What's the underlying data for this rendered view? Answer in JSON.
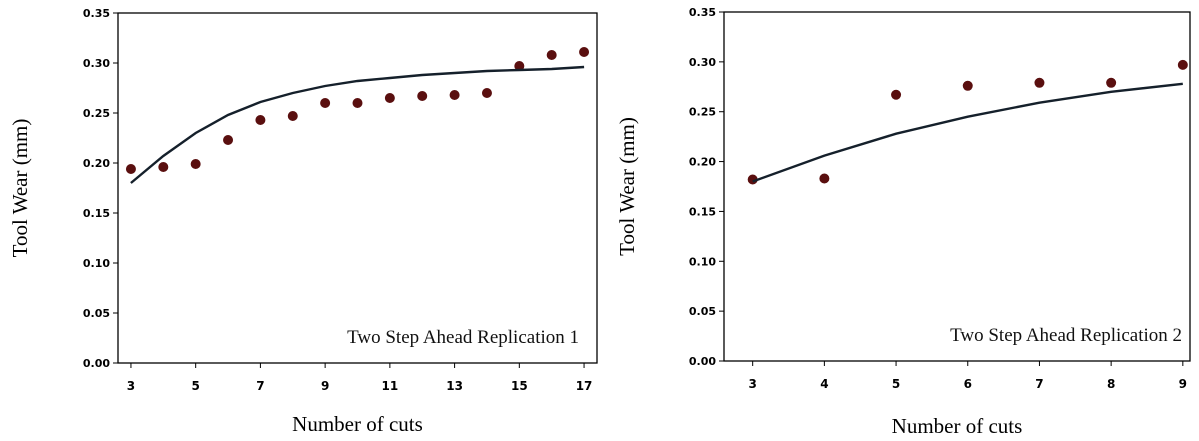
{
  "chart_data": [
    {
      "type": "scatter",
      "xlabel": "Number of cuts",
      "ylabel": "Tool Wear (mm)",
      "annotation": "Two Step Ahead Replication 1",
      "xlim": [
        2.6,
        17.4
      ],
      "ylim": [
        0,
        0.35
      ],
      "xticks": [
        3,
        5,
        7,
        9,
        11,
        13,
        15,
        17
      ],
      "yticks": [
        0.0,
        0.05,
        0.1,
        0.15,
        0.2,
        0.25,
        0.3,
        0.35
      ],
      "ytick_labels": [
        "0.00",
        "0.05",
        "0.10",
        "0.15",
        "0.20",
        "0.25",
        "0.30",
        "0.35"
      ],
      "grid": false,
      "series": [
        {
          "kind": "points",
          "color": "#5a0f0f",
          "x": [
            3,
            4,
            5,
            6,
            7,
            8,
            9,
            10,
            11,
            12,
            13,
            14,
            15,
            16,
            17
          ],
          "y": [
            0.194,
            0.196,
            0.199,
            0.223,
            0.243,
            0.247,
            0.26,
            0.26,
            0.265,
            0.267,
            0.268,
            0.27,
            0.297,
            0.308,
            0.311
          ]
        },
        {
          "kind": "line",
          "color": "#15202b",
          "x": [
            3,
            4,
            5,
            6,
            7,
            8,
            9,
            10,
            11,
            12,
            13,
            14,
            15,
            16,
            17
          ],
          "y": [
            0.18,
            0.207,
            0.23,
            0.248,
            0.261,
            0.27,
            0.277,
            0.282,
            0.285,
            0.288,
            0.29,
            0.292,
            0.293,
            0.294,
            0.296
          ]
        }
      ]
    },
    {
      "type": "scatter",
      "xlabel": "Number of cuts",
      "ylabel": "Tool Wear (mm)",
      "annotation": "Two Step Ahead Replication 2",
      "xlim": [
        2.6,
        9.1
      ],
      "ylim": [
        0,
        0.35
      ],
      "xticks": [
        3,
        4,
        5,
        6,
        7,
        8,
        9
      ],
      "yticks": [
        0.0,
        0.05,
        0.1,
        0.15,
        0.2,
        0.25,
        0.3,
        0.35
      ],
      "ytick_labels": [
        "0.00",
        "0.05",
        "0.10",
        "0.15",
        "0.20",
        "0.25",
        "0.30",
        "0.35"
      ],
      "grid": false,
      "series": [
        {
          "kind": "points",
          "color": "#5a0f0f",
          "x": [
            3,
            4,
            5,
            6,
            7,
            8,
            9
          ],
          "y": [
            0.182,
            0.183,
            0.267,
            0.276,
            0.279,
            0.279,
            0.297
          ]
        },
        {
          "kind": "line",
          "color": "#15202b",
          "x": [
            3,
            4,
            5,
            6,
            7,
            8,
            9
          ],
          "y": [
            0.18,
            0.206,
            0.228,
            0.245,
            0.259,
            0.27,
            0.278
          ]
        }
      ]
    }
  ]
}
